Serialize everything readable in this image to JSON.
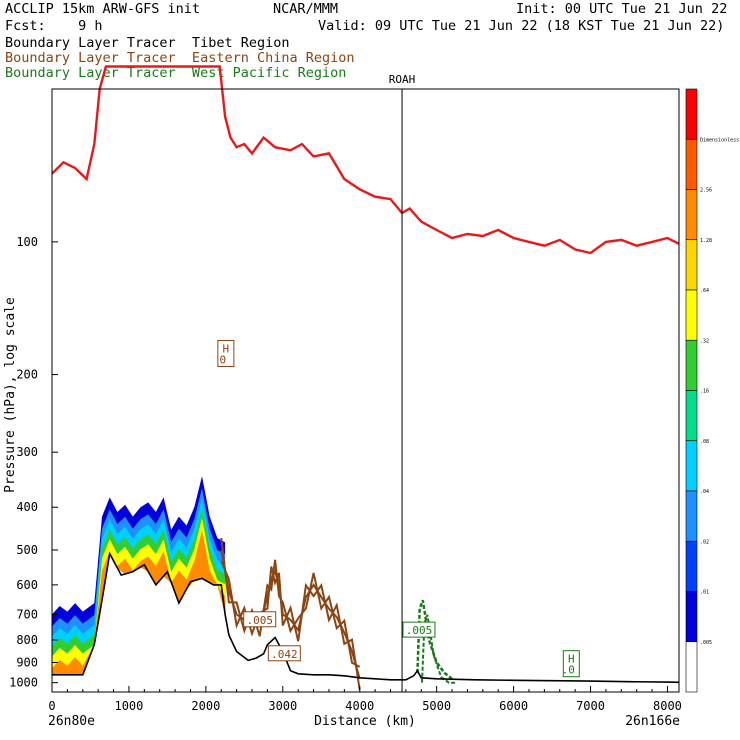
{
  "header": {
    "line1_left": "ACCLIP 15km ARW-GFS init",
    "line1_mid": "NCAR/MMM",
    "line1_right": "Init: 00 UTC Tue 21 Jun 22",
    "line2_left": "Fcst:    9 h",
    "line2_right": "Valid: 09 UTC Tue 21 Jun 22 (18 KST Tue 21 Jun 22)",
    "tracer1": "Boundary Layer Tracer  Tibet Region",
    "tracer2": "Boundary Layer Tracer  Eastern China Region",
    "tracer3": "Boundary Layer Tracer  West Pacific Region"
  },
  "colors": {
    "tibet": "#000000",
    "eastern_china": "#8b4513",
    "west_pacific": "#1a7a1a",
    "tropopause": "#e8191a",
    "terrain": "#000000"
  },
  "chart_data": {
    "type": "cross-section",
    "xlabel": "Distance (km)",
    "ylabel": "Pressure (hPa), log scale",
    "x_ticks": [
      0,
      1000,
      2000,
      3000,
      4000,
      5000,
      6000,
      7000,
      8000
    ],
    "y_ticks": [
      100,
      200,
      300,
      400,
      500,
      600,
      700,
      800,
      900,
      1000
    ],
    "xlim": [
      0,
      8150
    ],
    "ylim": [
      1050,
      45
    ],
    "y_scale": "log",
    "endpoint_left": "26n80e",
    "endpoint_right": "26n166e",
    "station": {
      "label": "ROAH",
      "x": 4550
    },
    "colorbar": {
      "labels": [
        "Dimensionless",
        "2.56",
        "1.28",
        ".64",
        ".32",
        ".16",
        ".08",
        ".04",
        ".02",
        ".01",
        ".005"
      ],
      "colors": [
        "#ff0000",
        "#ff5a00",
        "#ff8c00",
        "#ffd700",
        "#ffff00",
        "#32cd32",
        "#00dd88",
        "#00d0ff",
        "#1e90ff",
        "#0040ff",
        "#0000dd",
        "#ffffff"
      ]
    },
    "annotations": [
      {
        "text": "H",
        "value": "0",
        "x": 2260,
        "p": 182,
        "color": "#8b4513"
      },
      {
        "text": ".005",
        "x": 2700,
        "p": 720,
        "color": "#8b4513"
      },
      {
        "text": ".042",
        "x": 3020,
        "p": 860,
        "color": "#8b4513"
      },
      {
        "text": ".005",
        "x": 4770,
        "p": 760,
        "color": "#1a7a1a"
      },
      {
        "text": "H",
        "value": ".0",
        "x": 6750,
        "p": 920,
        "color": "#1a7a1a"
      }
    ],
    "tropopause": {
      "x": [
        0,
        150,
        300,
        450,
        550,
        620,
        700,
        800,
        1000,
        1200,
        1400,
        1600,
        1800,
        1950,
        2100,
        2180,
        2250,
        2320,
        2400,
        2500,
        2600,
        2750,
        2900,
        3100,
        3250,
        3400,
        3600,
        3800,
        4000,
        4200,
        4400,
        4550,
        4650,
        4800,
        5000,
        5200,
        5400,
        5600,
        5800,
        6000,
        6200,
        6400,
        6600,
        6800,
        7000,
        7200,
        7400,
        7600,
        7800,
        8000,
        8150
      ],
      "p": [
        70,
        66,
        68,
        72,
        60,
        45,
        40,
        40,
        40,
        40,
        40,
        40,
        40,
        40,
        40,
        40,
        52,
        58,
        61,
        60,
        63,
        58,
        61,
        62,
        60,
        64,
        63,
        72,
        76,
        79,
        80,
        86,
        84,
        90,
        94,
        98,
        96,
        97,
        94,
        98,
        100,
        102,
        99,
        104,
        106,
        100,
        99,
        102,
        100,
        98,
        101
      ]
    },
    "terrain": {
      "x": [
        0,
        200,
        400,
        550,
        650,
        750,
        900,
        1050,
        1200,
        1350,
        1500,
        1650,
        1800,
        1950,
        2100,
        2200,
        2250,
        2300,
        2400,
        2550,
        2650,
        2750,
        2800,
        2900,
        3000,
        3100,
        3200,
        3400,
        3600,
        3800,
        4000,
        4200,
        4400,
        4600,
        4700,
        4750,
        4800,
        5000,
        5500,
        6000,
        6500,
        7000,
        7500,
        8000,
        8150
      ],
      "p": [
        960,
        960,
        960,
        820,
        650,
        510,
        570,
        560,
        540,
        600,
        560,
        660,
        590,
        580,
        600,
        600,
        700,
        780,
        850,
        890,
        880,
        860,
        820,
        790,
        850,
        940,
        955,
        960,
        960,
        965,
        975,
        980,
        985,
        985,
        965,
        940,
        975,
        980,
        985,
        988,
        990,
        992,
        995,
        997,
        998
      ]
    },
    "tracer_top_tibet": {
      "x": [
        0,
        100,
        200,
        300,
        400,
        550,
        650,
        750,
        850,
        950,
        1050,
        1150,
        1250,
        1350,
        1450,
        1550,
        1650,
        1750,
        1850,
        1950,
        2050,
        2150,
        2250
      ],
      "p": [
        700,
        670,
        690,
        660,
        690,
        660,
        420,
        380,
        410,
        395,
        420,
        400,
        390,
        410,
        380,
        450,
        420,
        440,
        400,
        340,
        420,
        470,
        480
      ]
    },
    "tracer_eastern_china": {
      "x": [
        2200,
        2300,
        2400,
        2500,
        2600,
        2700,
        2800,
        2850,
        2900,
        2950,
        3000,
        3100,
        3200,
        3300,
        3400,
        3500,
        3600,
        3700,
        3800,
        3900,
        4000
      ],
      "p": [
        500,
        620,
        700,
        720,
        730,
        740,
        640,
        580,
        560,
        600,
        700,
        720,
        760,
        640,
        600,
        640,
        680,
        710,
        770,
        850,
        980
      ]
    },
    "tracer_west_pacific": {
      "x": [
        4750,
        4780,
        4820,
        4860,
        4900,
        4950,
        5000,
        5100,
        5200
      ],
      "p": [
        950,
        680,
        650,
        720,
        800,
        850,
        900,
        950,
        980
      ]
    }
  }
}
